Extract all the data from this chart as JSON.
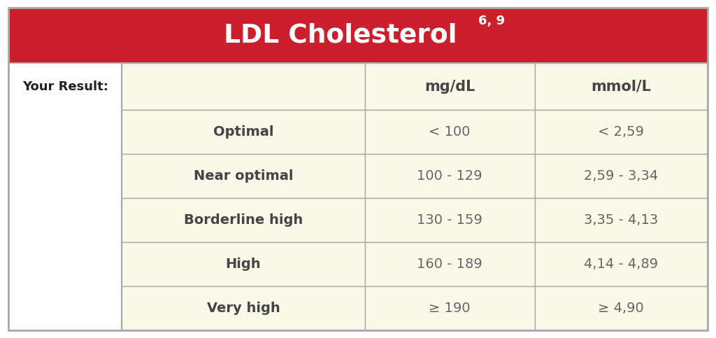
{
  "title": "LDL Cholesterol",
  "title_superscript": "6, 9",
  "title_bg_color": "#CC1F2D",
  "title_text_color": "#FFFFFF",
  "table_bg_color": "#FAF8E8",
  "outer_bg_color": "#FFFFFF",
  "border_color": "#AAAAAA",
  "your_result_label": "Your Result:",
  "col_headers": [
    "",
    "mg/dL",
    "mmol/L"
  ],
  "rows": [
    [
      "Optimal",
      "< 100",
      "< 2,59"
    ],
    [
      "Near optimal",
      "100 - 129",
      "2,59 - 3,34"
    ],
    [
      "Borderline high",
      "130 - 159",
      "3,35 - 4,13"
    ],
    [
      "High",
      "160 - 189",
      "4,14 - 4,89"
    ],
    [
      "Very high",
      "≥ 190",
      "≥ 4,90"
    ]
  ],
  "category_text_color": "#444444",
  "value_text_color": "#666666",
  "header_text_color": "#444444",
  "yr_text_color": "#222222",
  "figsize": [
    10.24,
    4.83
  ],
  "dpi": 100
}
